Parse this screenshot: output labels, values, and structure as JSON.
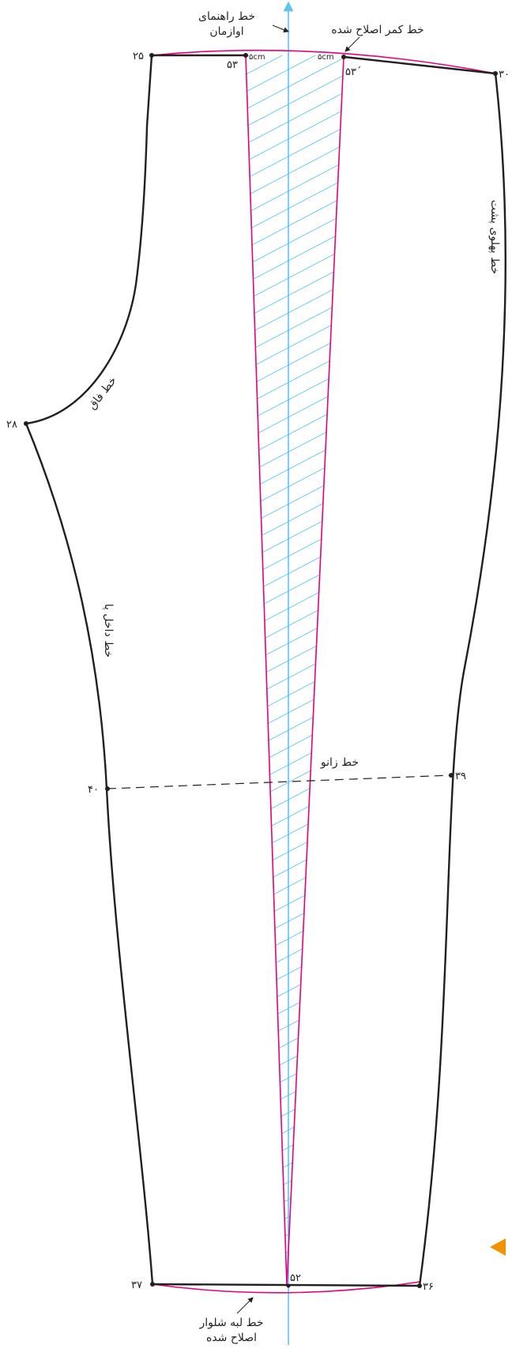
{
  "points": {
    "p25": "۲۵",
    "p28": "۲۸",
    "p30": "۳۰",
    "p40": "۴۰",
    "p39": "۳۹",
    "p37": "۳۷",
    "p36": "۳۶",
    "p52": "۵۲",
    "p53": "۵۳",
    "p53_prime": "۵۳´"
  },
  "measurements": {
    "dart_left": "۵cm",
    "dart_right": "۵cm"
  },
  "labels": {
    "guide_line_1": "خط راهنمای",
    "guide_line_2": "اوازمان",
    "waist_corrected": "خط کمر اصلاح شده",
    "side_back": "خط پهلوی پشت",
    "crotch": "خط فاق",
    "inseam": "خط داخل پا",
    "knee": "خط زانو",
    "hem_1": "خط لبه شلوار",
    "hem_2": "اصلاح شده"
  },
  "colors": {
    "outline": "#231f20",
    "corrected": "#e6007e",
    "grainline": "#5bc5f2",
    "hatch": "#5bc5f2",
    "marker": "#f39200"
  }
}
